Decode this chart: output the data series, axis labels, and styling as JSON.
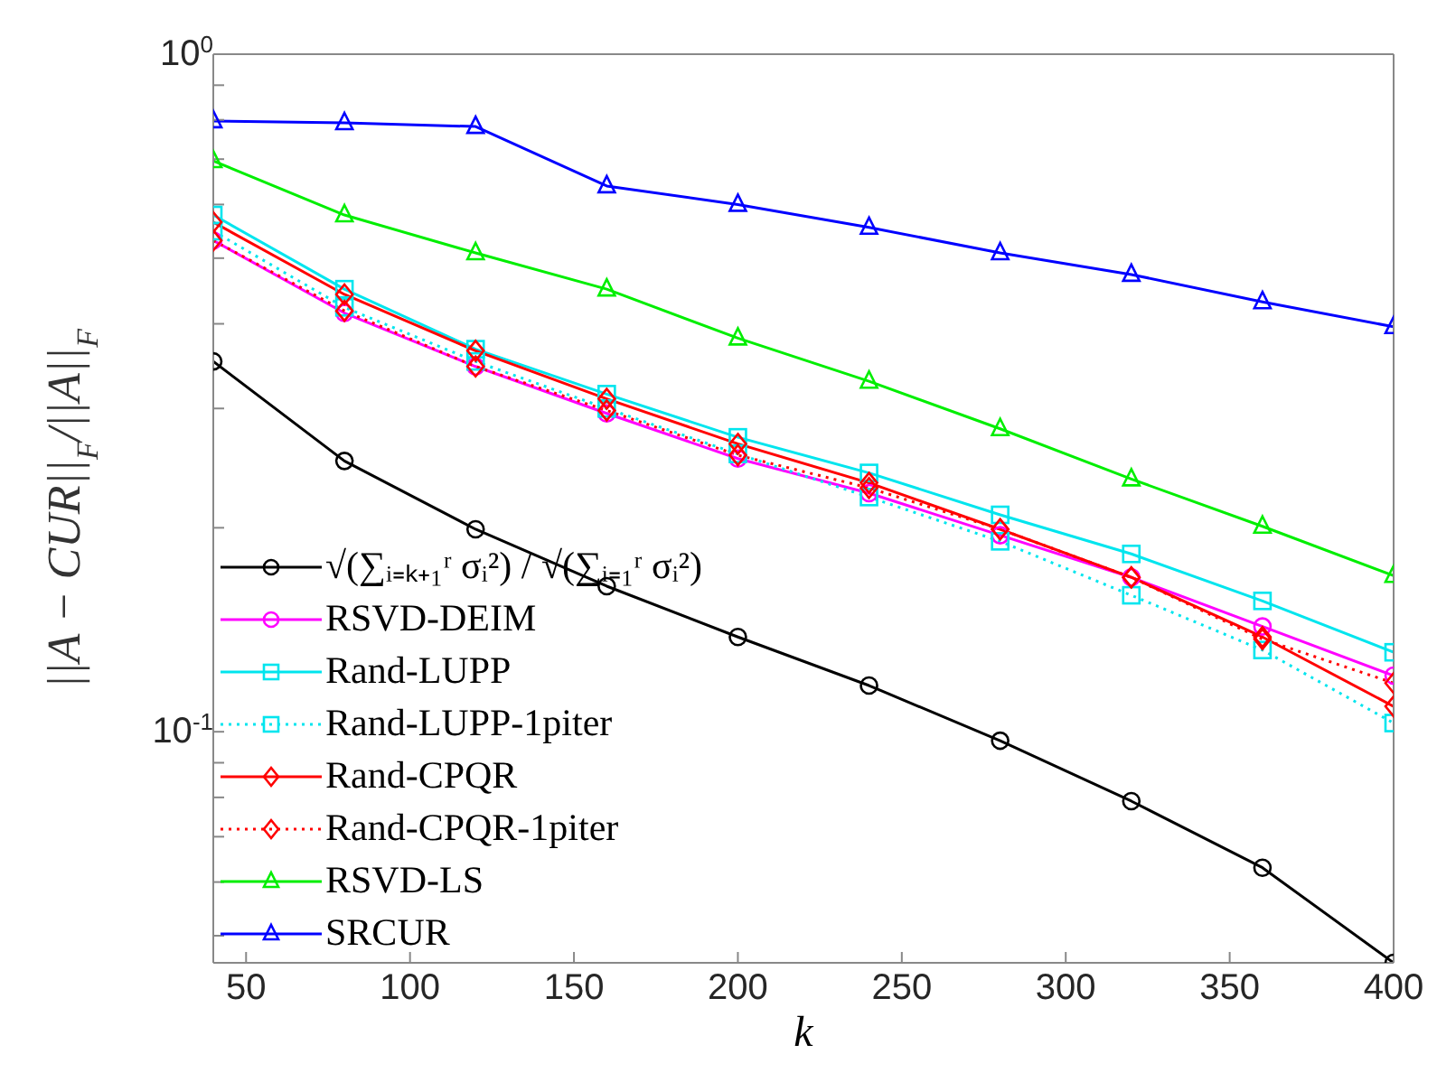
{
  "chart_data": {
    "type": "line",
    "xlabel": "k",
    "ylabel": "||A − CUR||$_{F}$/||A||$_{F}$",
    "x": [
      40,
      80,
      120,
      160,
      200,
      240,
      280,
      320,
      360,
      400
    ],
    "xlim": [
      40,
      400
    ],
    "xticks": [
      50,
      100,
      150,
      200,
      250,
      300,
      350,
      400
    ],
    "ylim": [
      0.0456,
      1
    ],
    "log": true,
    "yticks": [
      {
        "value": 0.05,
        "label": null
      },
      {
        "value": 0.06,
        "label": null
      },
      {
        "value": 0.07,
        "label": null
      },
      {
        "value": 0.08,
        "label": null
      },
      {
        "value": 0.09,
        "label": null
      },
      {
        "value": 0.1,
        "label": "10$^{-1}$"
      },
      {
        "value": 0.2,
        "label": null
      },
      {
        "value": 0.3,
        "label": null
      },
      {
        "value": 0.4,
        "label": null
      },
      {
        "value": 0.5,
        "label": null
      },
      {
        "value": 0.6,
        "label": null
      },
      {
        "value": 0.7,
        "label": null
      },
      {
        "value": 0.8,
        "label": null
      },
      {
        "value": 0.9,
        "label": null
      },
      {
        "value": 1,
        "label": "10$^{0}$"
      }
    ],
    "grid": false,
    "legend": "bottom left",
    "series": [
      {
        "name": "√(∑ᵢ₌ₖ₊₁ʳ σᵢ²) / √(∑ᵢ₌₁ʳ σᵢ²)",
        "color": "#000000",
        "marker": "circle",
        "line_style": "solid",
        "values": [
          0.352,
          0.251,
          0.199,
          0.164,
          0.138,
          0.117,
          0.097,
          0.079,
          0.063,
          0.0456
        ]
      },
      {
        "name": "RSVD-DEIM",
        "color": "#ff00ff",
        "marker": "circle",
        "line_style": "solid",
        "values": [
          0.531,
          0.415,
          0.346,
          0.295,
          0.253,
          0.225,
          0.195,
          0.169,
          0.143,
          0.121
        ]
      },
      {
        "name": "Rand-LUPP",
        "color": "#00e5ee",
        "marker": "square",
        "line_style": "solid",
        "values": [
          0.579,
          0.45,
          0.367,
          0.315,
          0.272,
          0.241,
          0.209,
          0.183,
          0.156,
          0.131
        ]
      },
      {
        "name": "Rand-LUPP-1piter",
        "color": "#00e5ee",
        "marker": "square",
        "line_style": "dotted",
        "values": [
          0.548,
          0.423,
          0.352,
          0.3,
          0.257,
          0.222,
          0.191,
          0.159,
          0.132,
          0.103
        ]
      },
      {
        "name": "Rand-CPQR",
        "color": "#ff0000",
        "marker": "diamond",
        "line_style": "solid",
        "values": [
          0.565,
          0.442,
          0.365,
          0.31,
          0.266,
          0.233,
          0.199,
          0.169,
          0.138,
          0.109
        ]
      },
      {
        "name": "Rand-CPQR-1piter",
        "color": "#ff0000",
        "marker": "diamond",
        "line_style": "dotted",
        "values": [
          0.531,
          0.418,
          0.346,
          0.298,
          0.256,
          0.229,
          0.199,
          0.169,
          0.137,
          0.118
        ]
      },
      {
        "name": "RSVD-LS",
        "color": "#00ee00",
        "marker": "triangle",
        "line_style": "solid",
        "values": [
          0.696,
          0.579,
          0.509,
          0.45,
          0.381,
          0.329,
          0.28,
          0.236,
          0.201,
          0.17
        ]
      },
      {
        "name": "SRCUR",
        "color": "#0000ff",
        "marker": "triangle",
        "line_style": "solid",
        "values": [
          0.797,
          0.792,
          0.782,
          0.639,
          0.6,
          0.555,
          0.509,
          0.473,
          0.431,
          0.396
        ]
      }
    ]
  }
}
